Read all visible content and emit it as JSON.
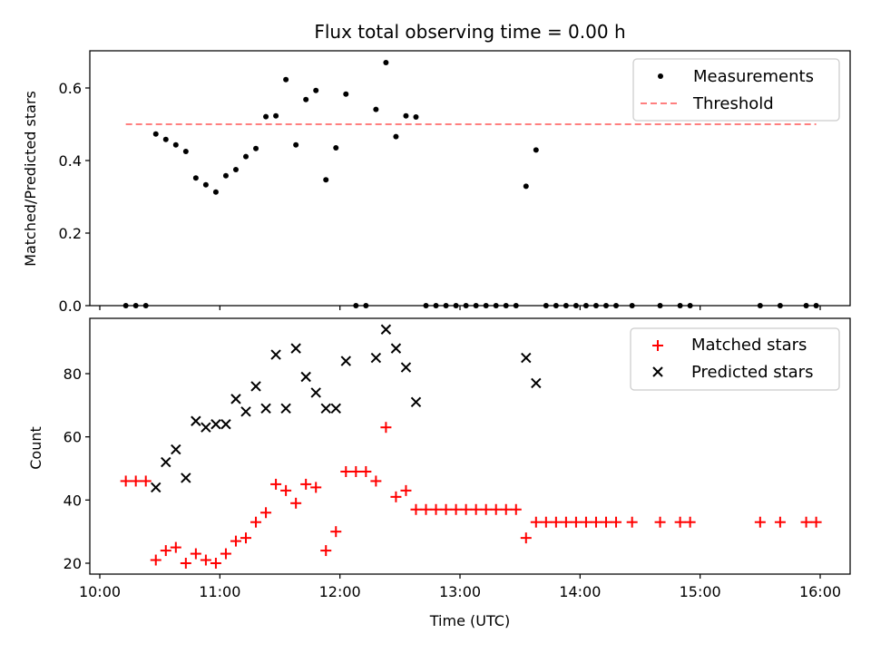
{
  "chart_data": [
    {
      "type": "scatter",
      "title": "Flux total observing time = 0.00 h",
      "xlabel": "",
      "ylabel": "Matched/Predicted stars",
      "xlim": [
        "10:00",
        "16:00"
      ],
      "ylim": [
        0,
        0.7
      ],
      "yticks": [
        "0.0",
        "0.2",
        "0.4",
        "0.6"
      ],
      "legend_position": "top-right",
      "series": [
        {
          "name": "Measurements",
          "color": "#000000",
          "marker": "dot",
          "points": [
            [
              "10:13",
              0.0
            ],
            [
              "10:18",
              0.0
            ],
            [
              "10:23",
              0.0
            ],
            [
              "10:28",
              0.473
            ],
            [
              "10:33",
              0.458
            ],
            [
              "10:38",
              0.443
            ],
            [
              "10:43",
              0.425
            ],
            [
              "10:48",
              0.352
            ],
            [
              "10:53",
              0.333
            ],
            [
              "10:58",
              0.313
            ],
            [
              "11:03",
              0.358
            ],
            [
              "11:08",
              0.375
            ],
            [
              "11:13",
              0.411
            ],
            [
              "11:18",
              0.433
            ],
            [
              "11:23",
              0.521
            ],
            [
              "11:28",
              0.523
            ],
            [
              "11:33",
              0.623
            ],
            [
              "11:38",
              0.443
            ],
            [
              "11:43",
              0.568
            ],
            [
              "11:48",
              0.593
            ],
            [
              "11:53",
              0.347
            ],
            [
              "11:58",
              0.435
            ],
            [
              "12:03",
              0.583
            ],
            [
              "12:08",
              0.0
            ],
            [
              "12:13",
              0.0
            ],
            [
              "12:18",
              0.541
            ],
            [
              "12:23",
              0.67
            ],
            [
              "12:28",
              0.466
            ],
            [
              "12:33",
              0.523
            ],
            [
              "12:38",
              0.52
            ],
            [
              "12:43",
              0.0
            ],
            [
              "12:48",
              0.0
            ],
            [
              "12:53",
              0.0
            ],
            [
              "12:58",
              0.0
            ],
            [
              "13:03",
              0.0
            ],
            [
              "13:08",
              0.0
            ],
            [
              "13:13",
              0.0
            ],
            [
              "13:18",
              0.0
            ],
            [
              "13:23",
              0.0
            ],
            [
              "13:28",
              0.0
            ],
            [
              "13:33",
              0.329
            ],
            [
              "13:38",
              0.429
            ],
            [
              "13:43",
              0.0
            ],
            [
              "13:48",
              0.0
            ],
            [
              "13:53",
              0.0
            ],
            [
              "13:58",
              0.0
            ],
            [
              "14:03",
              0.0
            ],
            [
              "14:08",
              0.0
            ],
            [
              "14:13",
              0.0
            ],
            [
              "14:18",
              0.0
            ],
            [
              "14:26",
              0.0
            ],
            [
              "14:40",
              0.0
            ],
            [
              "14:50",
              0.0
            ],
            [
              "14:55",
              0.0
            ],
            [
              "15:30",
              0.0
            ],
            [
              "15:40",
              0.0
            ],
            [
              "15:53",
              0.0
            ],
            [
              "15:58",
              0.0
            ]
          ]
        },
        {
          "name": "Threshold",
          "color": "#ff7f7f",
          "style": "dashed",
          "points": [
            [
              "10:13",
              0.5
            ],
            [
              "15:58",
              0.5
            ]
          ]
        }
      ]
    },
    {
      "type": "scatter",
      "title": "",
      "xlabel": "Time (UTC)",
      "ylabel": "Count",
      "xlim": [
        "10:00",
        "16:00"
      ],
      "ylim": [
        17,
        96
      ],
      "yticks": [
        "20",
        "40",
        "60",
        "80"
      ],
      "xticks": [
        "10:00",
        "11:00",
        "12:00",
        "13:00",
        "14:00",
        "15:00",
        "16:00"
      ],
      "legend_position": "top-right",
      "series": [
        {
          "name": "Matched stars",
          "color": "#ff0000",
          "marker": "plus",
          "points": [
            [
              "10:13",
              46
            ],
            [
              "10:18",
              46
            ],
            [
              "10:23",
              46
            ],
            [
              "10:28",
              21
            ],
            [
              "10:33",
              24
            ],
            [
              "10:38",
              25
            ],
            [
              "10:43",
              20
            ],
            [
              "10:48",
              23
            ],
            [
              "10:53",
              21
            ],
            [
              "10:58",
              20
            ],
            [
              "11:03",
              23
            ],
            [
              "11:08",
              27
            ],
            [
              "11:13",
              28
            ],
            [
              "11:18",
              33
            ],
            [
              "11:23",
              36
            ],
            [
              "11:28",
              45
            ],
            [
              "11:33",
              43
            ],
            [
              "11:38",
              39
            ],
            [
              "11:43",
              45
            ],
            [
              "11:48",
              44
            ],
            [
              "11:53",
              24
            ],
            [
              "11:58",
              30
            ],
            [
              "12:03",
              49
            ],
            [
              "12:08",
              49
            ],
            [
              "12:13",
              49
            ],
            [
              "12:18",
              46
            ],
            [
              "12:23",
              63
            ],
            [
              "12:28",
              41
            ],
            [
              "12:33",
              43
            ],
            [
              "12:38",
              37
            ],
            [
              "12:43",
              37
            ],
            [
              "12:48",
              37
            ],
            [
              "12:53",
              37
            ],
            [
              "12:58",
              37
            ],
            [
              "13:03",
              37
            ],
            [
              "13:08",
              37
            ],
            [
              "13:13",
              37
            ],
            [
              "13:18",
              37
            ],
            [
              "13:23",
              37
            ],
            [
              "13:28",
              37
            ],
            [
              "13:33",
              28
            ],
            [
              "13:38",
              33
            ],
            [
              "13:43",
              33
            ],
            [
              "13:48",
              33
            ],
            [
              "13:53",
              33
            ],
            [
              "13:58",
              33
            ],
            [
              "14:03",
              33
            ],
            [
              "14:08",
              33
            ],
            [
              "14:13",
              33
            ],
            [
              "14:18",
              33
            ],
            [
              "14:26",
              33
            ],
            [
              "14:40",
              33
            ],
            [
              "14:50",
              33
            ],
            [
              "14:55",
              33
            ],
            [
              "15:30",
              33
            ],
            [
              "15:40",
              33
            ],
            [
              "15:53",
              33
            ],
            [
              "15:58",
              33
            ]
          ]
        },
        {
          "name": "Predicted stars",
          "color": "#000000",
          "marker": "x",
          "points": [
            [
              "10:28",
              44
            ],
            [
              "10:33",
              52
            ],
            [
              "10:38",
              56
            ],
            [
              "10:43",
              47
            ],
            [
              "10:48",
              65
            ],
            [
              "10:53",
              63
            ],
            [
              "10:58",
              64
            ],
            [
              "11:03",
              64
            ],
            [
              "11:08",
              72
            ],
            [
              "11:13",
              68
            ],
            [
              "11:18",
              76
            ],
            [
              "11:23",
              69
            ],
            [
              "11:28",
              86
            ],
            [
              "11:33",
              69
            ],
            [
              "11:38",
              88
            ],
            [
              "11:43",
              79
            ],
            [
              "11:48",
              74
            ],
            [
              "11:53",
              69
            ],
            [
              "11:58",
              69
            ],
            [
              "12:03",
              84
            ],
            [
              "12:18",
              85
            ],
            [
              "12:23",
              94
            ],
            [
              "12:28",
              88
            ],
            [
              "12:33",
              82
            ],
            [
              "12:38",
              71
            ],
            [
              "13:33",
              85
            ],
            [
              "13:38",
              77
            ]
          ]
        }
      ]
    }
  ]
}
